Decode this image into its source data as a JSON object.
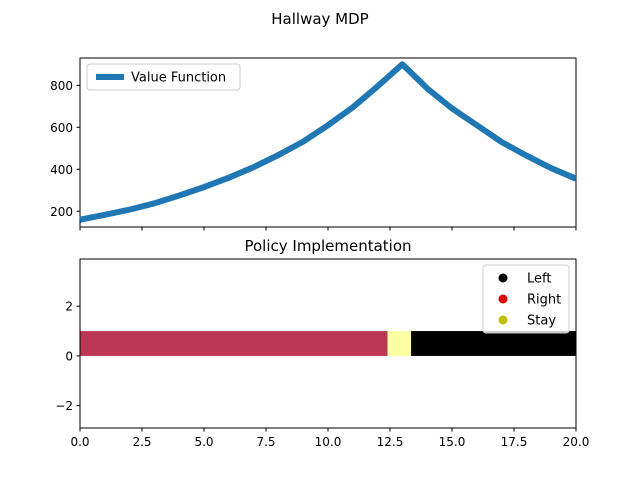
{
  "figure": {
    "suptitle": "Hallway MDP"
  },
  "chart_data": [
    {
      "type": "line",
      "title": "",
      "xlabel": "",
      "ylabel": "",
      "xlim": [
        0,
        20
      ],
      "ylim": [
        125,
        930
      ],
      "yticks": [
        200,
        400,
        600,
        800
      ],
      "grid": false,
      "legend": {
        "placement": "top-left",
        "entries": [
          "Value Function"
        ]
      },
      "series": [
        {
          "name": "Value Function",
          "color": "#1f77b4",
          "x": [
            0,
            1,
            2,
            3,
            4,
            5,
            6,
            7,
            8,
            9,
            10,
            11,
            12,
            13,
            14,
            15,
            16,
            17,
            18,
            19,
            20
          ],
          "y": [
            160,
            183,
            208,
            238,
            275,
            315,
            360,
            410,
            468,
            532,
            610,
            695,
            795,
            900,
            785,
            690,
            610,
            530,
            465,
            405,
            355
          ]
        }
      ]
    },
    {
      "type": "bar",
      "title": "Policy Implementation",
      "xlabel": "",
      "ylabel": "",
      "xlim": [
        0,
        20
      ],
      "ylim": [
        -2.9,
        3.9
      ],
      "xticks": [
        "0.0",
        "2.5",
        "5.0",
        "7.5",
        "10.0",
        "12.5",
        "15.0",
        "17.5",
        "20.0"
      ],
      "yticks": [
        "2",
        "0",
        "−2"
      ],
      "grid": false,
      "legend": {
        "placement": "top-right",
        "entries": [
          {
            "label": "Left",
            "color": "#000000"
          },
          {
            "label": "Right",
            "color": "#e00000"
          },
          {
            "label": "Stay",
            "color": "#c0c000"
          }
        ]
      },
      "segments": [
        {
          "action": "Right",
          "start": 0,
          "end": 12.4,
          "height": 1,
          "color": "#bc3754"
        },
        {
          "action": "Stay",
          "start": 12.4,
          "end": 13.35,
          "height": 1,
          "color": "#fcffa4"
        },
        {
          "action": "Left",
          "start": 13.35,
          "end": 20,
          "height": 1,
          "color": "#000000"
        }
      ]
    }
  ]
}
